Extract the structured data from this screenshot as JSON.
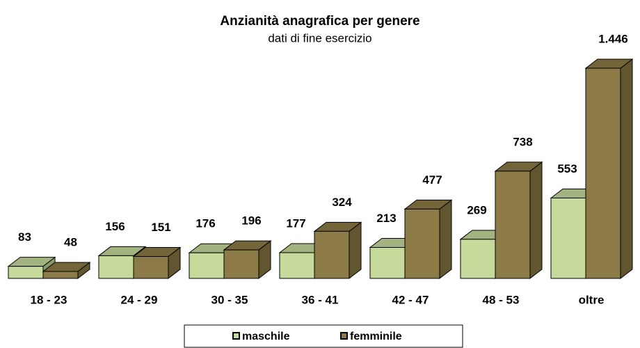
{
  "chart_data": {
    "type": "bar3d",
    "title": "Anzianità anagrafica per genere",
    "subtitle": "dati di fine esercizio",
    "categories": [
      "18 - 23",
      "24 - 29",
      "30 - 35",
      "36 - 41",
      "42 - 47",
      "48 - 53",
      "oltre"
    ],
    "series": [
      {
        "name": "maschile",
        "color": "#c6da9c",
        "values": [
          83,
          156,
          176,
          177,
          213,
          269,
          553
        ],
        "value_labels": [
          "83",
          "156",
          "176",
          "177",
          "213",
          "269",
          "553"
        ]
      },
      {
        "name": "femminile",
        "color": "#8c7b46",
        "values": [
          48,
          151,
          196,
          324,
          477,
          738,
          1446
        ],
        "value_labels": [
          "48",
          "151",
          "196",
          "324",
          "477",
          "738",
          "1.446"
        ]
      }
    ],
    "legend": "bottom"
  }
}
